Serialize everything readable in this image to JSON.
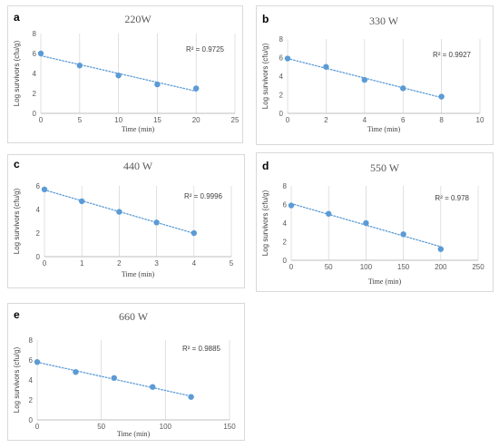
{
  "chart_data": [
    {
      "id": "a",
      "type": "scatter",
      "panel_letter": "a",
      "title": "220W",
      "xlabel": "Time (min)",
      "ylabel": "Log survivors (cfu/g)",
      "xlim": [
        0,
        25
      ],
      "ylim": [
        0,
        8
      ],
      "xticks": [
        "0",
        "5",
        "10",
        "15",
        "20",
        "25"
      ],
      "yticks": [
        "0",
        "2",
        "4",
        "6",
        "8"
      ],
      "x": [
        0,
        5,
        10,
        15,
        20
      ],
      "y": [
        6.0,
        4.8,
        3.8,
        2.9,
        2.5
      ],
      "r2": "R² = 0.9725",
      "trendline": "linear",
      "grid": "vertical"
    },
    {
      "id": "b",
      "type": "scatter",
      "panel_letter": "b",
      "title": "330 W",
      "xlabel": "Time (min)",
      "ylabel": "Log survivors (cfu/g)",
      "xlim": [
        0,
        10
      ],
      "ylim": [
        0,
        8
      ],
      "xticks": [
        "0",
        "2",
        "4",
        "6",
        "8",
        "10"
      ],
      "yticks": [
        "0",
        "2",
        "4",
        "6",
        "8"
      ],
      "x": [
        0,
        2,
        4,
        6,
        8
      ],
      "y": [
        5.9,
        5.0,
        3.6,
        2.7,
        1.8
      ],
      "r2": "R² = 0.9927",
      "trendline": "linear",
      "grid": "vertical"
    },
    {
      "id": "c",
      "type": "scatter",
      "panel_letter": "c",
      "title": "440 W",
      "xlabel": "Time (min)",
      "ylabel": "Log survivors (cfu/g)",
      "xlim": [
        0,
        5
      ],
      "ylim": [
        0,
        6
      ],
      "xticks": [
        "0",
        "1",
        "2",
        "3",
        "4",
        "5"
      ],
      "yticks": [
        "0",
        "2",
        "4",
        "6"
      ],
      "x": [
        0,
        1,
        2,
        3,
        4
      ],
      "y": [
        5.7,
        4.7,
        3.8,
        2.9,
        2.0
      ],
      "r2": "R² = 0.9996",
      "trendline": "linear",
      "grid": "vertical"
    },
    {
      "id": "d",
      "type": "scatter",
      "panel_letter": "d",
      "title": "550 W",
      "xlabel": "Time (min)",
      "ylabel": "Log survivors (cfu/g)",
      "xlim": [
        0,
        250
      ],
      "ylim": [
        0,
        8
      ],
      "xticks": [
        "0",
        "50",
        "100",
        "150",
        "200",
        "250"
      ],
      "yticks": [
        "0",
        "2",
        "4",
        "6",
        "8"
      ],
      "x": [
        0,
        50,
        100,
        150,
        200
      ],
      "y": [
        5.9,
        5.0,
        4.0,
        2.8,
        1.2
      ],
      "r2": "R² = 0.978",
      "trendline": "linear",
      "grid": "vertical"
    },
    {
      "id": "e",
      "type": "scatter",
      "panel_letter": "e",
      "title": "660 W",
      "xlabel": "Time (min)",
      "ylabel": "Log survivors (cfu/g)",
      "xlim": [
        0,
        150
      ],
      "ylim": [
        0,
        8
      ],
      "xticks": [
        "0",
        "50",
        "100",
        "150"
      ],
      "yticks": [
        "0",
        "2",
        "4",
        "6",
        "8"
      ],
      "x": [
        0,
        30,
        60,
        90,
        120
      ],
      "y": [
        5.8,
        4.8,
        4.2,
        3.3,
        2.3
      ],
      "r2": "R² = 0.9885",
      "trendline": "linear",
      "grid": "vertical"
    }
  ],
  "colors": {
    "marker": "#5b9bd5",
    "trend": "#5b9bd5",
    "grid": "#d9d9d9",
    "axis": "#bfbfbf"
  }
}
